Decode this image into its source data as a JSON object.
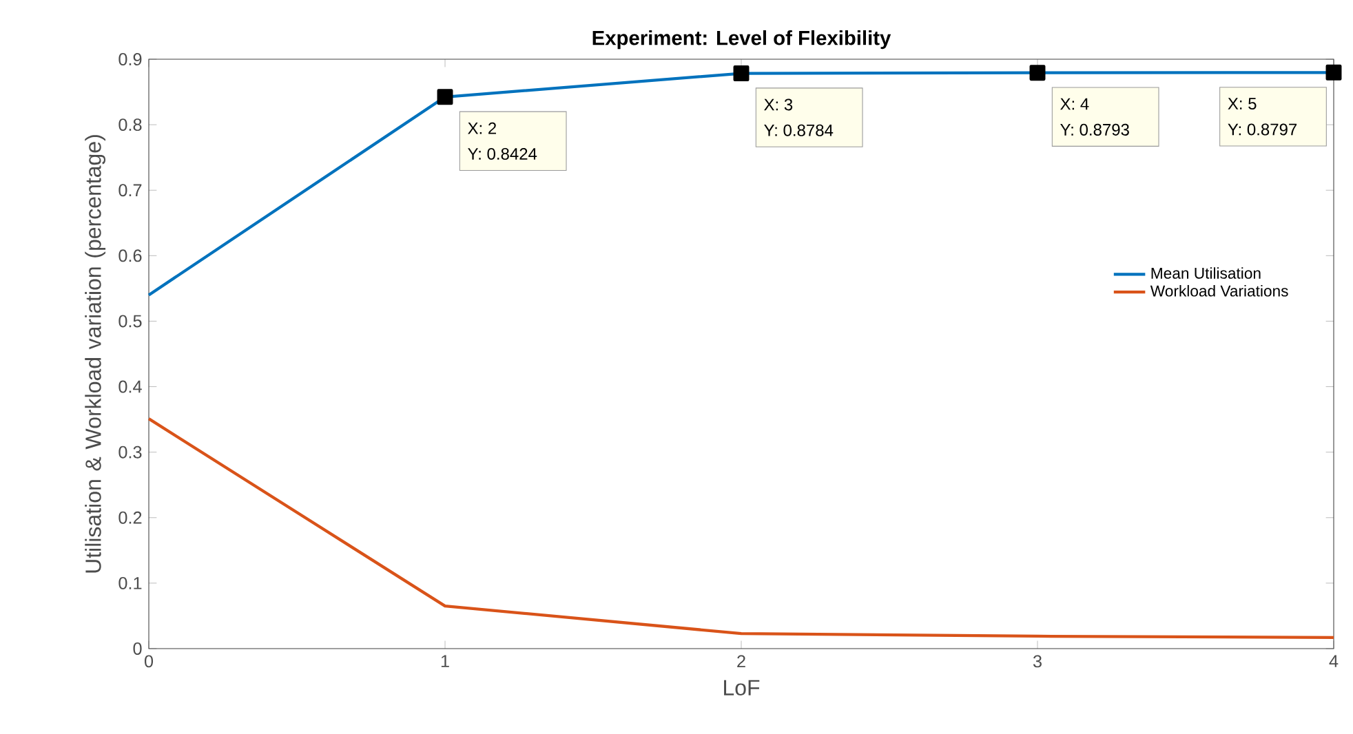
{
  "chart_data": {
    "type": "line",
    "title": "Experiment: Level of Flexibility",
    "xlabel": "LoF",
    "ylabel": "Utilisation & Workload variation (percentage)",
    "x": [
      0,
      1,
      2,
      3,
      4
    ],
    "series": [
      {
        "name": "Mean Utilisation",
        "color": "#0072bd",
        "marker": "square",
        "values": [
          0.54,
          0.8424,
          0.8784,
          0.8793,
          0.8797
        ]
      },
      {
        "name": "Workload Variations",
        "color": "#d95319",
        "values": [
          0.351,
          0.065,
          0.023,
          0.019,
          0.017
        ]
      }
    ],
    "xlim": [
      0,
      4
    ],
    "ylim": [
      0,
      0.9
    ],
    "xticks": [
      0,
      1,
      2,
      3,
      4
    ],
    "yticks": [
      0,
      0.1,
      0.2,
      0.3,
      0.4,
      0.5,
      0.6,
      0.7,
      0.8,
      0.9
    ],
    "grid": false,
    "legend": "right",
    "line_style": "solid",
    "annotations": [
      "X: 2",
      "Y: 0.8424",
      "X: 3",
      "Y: 0.8784",
      "X: 4",
      "Y: 0.8793",
      "X: 5",
      "Y: 0.8797"
    ]
  }
}
